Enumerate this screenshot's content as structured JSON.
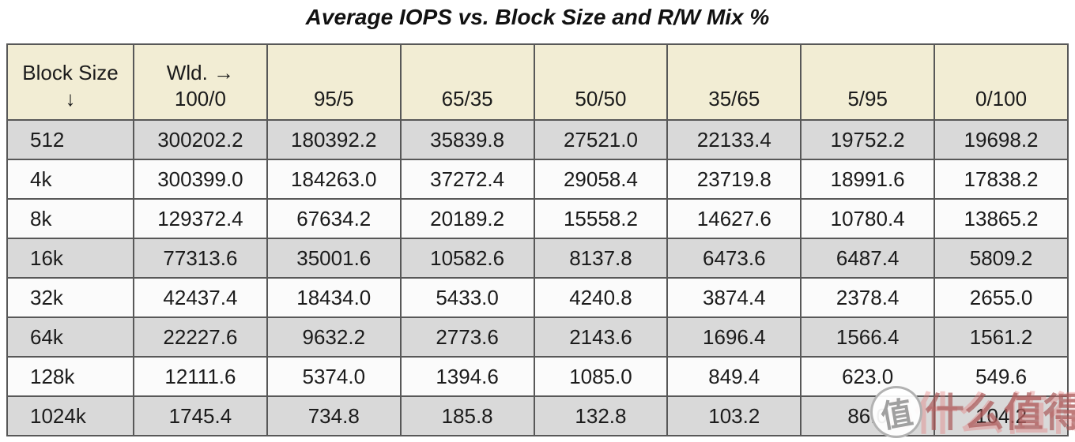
{
  "title": "Average IOPS vs. Block Size and R/W Mix %",
  "table": {
    "header": {
      "block_size_label": "Block Size",
      "block_size_arrow": "↓",
      "workload_line1": "Wld. →",
      "workload_line2": "100/0",
      "mix_columns": [
        "95/5",
        "65/35",
        "50/50",
        "35/65",
        "5/95",
        "0/100"
      ]
    },
    "rows": [
      {
        "block_size": "512",
        "values": [
          "300202.2",
          "180392.2",
          "35839.8",
          "27521.0",
          "22133.4",
          "19752.2",
          "19698.2"
        ]
      },
      {
        "block_size": "4k",
        "values": [
          "300399.0",
          "184263.0",
          "37272.4",
          "29058.4",
          "23719.8",
          "18991.6",
          "17838.2"
        ]
      },
      {
        "block_size": "8k",
        "values": [
          "129372.4",
          "67634.2",
          "20189.2",
          "15558.2",
          "14627.6",
          "10780.4",
          "13865.2"
        ]
      },
      {
        "block_size": "16k",
        "values": [
          "77313.6",
          "35001.6",
          "10582.6",
          "8137.8",
          "6473.6",
          "6487.4",
          "5809.2"
        ]
      },
      {
        "block_size": "32k",
        "values": [
          "42437.4",
          "18434.0",
          "5433.0",
          "4240.8",
          "3874.4",
          "2378.4",
          "2655.0"
        ]
      },
      {
        "block_size": "64k",
        "values": [
          "22227.6",
          "9632.2",
          "2773.6",
          "2143.6",
          "1696.4",
          "1566.4",
          "1561.2"
        ]
      },
      {
        "block_size": "128k",
        "values": [
          "12111.6",
          "5374.0",
          "1394.6",
          "1085.0",
          "849.4",
          "623.0",
          "549.6"
        ]
      },
      {
        "block_size": "1024k",
        "values": [
          "1745.4",
          "734.8",
          "185.8",
          "132.8",
          "103.2",
          "86.0",
          "104.2"
        ]
      }
    ]
  },
  "watermark": {
    "badge": "值",
    "text": "什么值得买",
    "text_light": "5什么值得买"
  },
  "colors": {
    "header_bg": "#f2edd4",
    "row_gray": "#d9d9d9",
    "row_light": "#fbfbfb",
    "border": "#585858",
    "title_text": "#111111",
    "watermark_red": "#aa5858"
  },
  "chart_data": {
    "type": "table",
    "title": "Average IOPS vs. Block Size and R/W Mix %",
    "columns": [
      "Block Size ↓",
      "Wld. → 100/0",
      "95/5",
      "65/35",
      "50/50",
      "35/65",
      "5/95",
      "0/100"
    ],
    "rows": [
      [
        "512",
        300202.2,
        180392.2,
        35839.8,
        27521.0,
        22133.4,
        19752.2,
        19698.2
      ],
      [
        "4k",
        300399.0,
        184263.0,
        37272.4,
        29058.4,
        23719.8,
        18991.6,
        17838.2
      ],
      [
        "8k",
        129372.4,
        67634.2,
        20189.2,
        15558.2,
        14627.6,
        10780.4,
        13865.2
      ],
      [
        "16k",
        77313.6,
        35001.6,
        10582.6,
        8137.8,
        6473.6,
        6487.4,
        5809.2
      ],
      [
        "32k",
        42437.4,
        18434.0,
        5433.0,
        4240.8,
        3874.4,
        2378.4,
        2655.0
      ],
      [
        "64k",
        22227.6,
        9632.2,
        2773.6,
        2143.6,
        1696.4,
        1566.4,
        1561.2
      ],
      [
        "128k",
        12111.6,
        5374.0,
        1394.6,
        1085.0,
        849.4,
        623.0,
        549.6
      ],
      [
        "1024k",
        1745.4,
        734.8,
        185.8,
        132.8,
        103.2,
        86.0,
        104.2
      ]
    ]
  }
}
